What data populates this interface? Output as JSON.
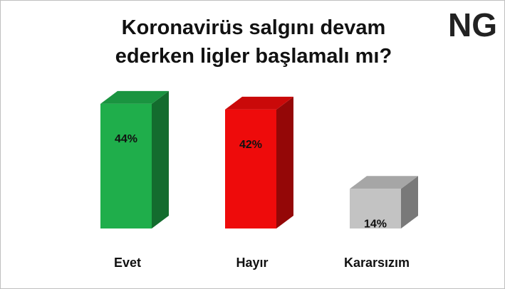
{
  "chart_data": {
    "type": "bar3d",
    "title": "Koronavirüs salgını devam\nederken ligler başlamalı mı?",
    "logo": "NG",
    "categories": [
      "Evet",
      "Hayır",
      "Kararsızım"
    ],
    "values": [
      44,
      42,
      14
    ],
    "value_labels": [
      "44%",
      "42%",
      "14%"
    ],
    "colors": [
      "#1fae4b",
      "#ee0b0b",
      "#c3c3c3"
    ]
  }
}
